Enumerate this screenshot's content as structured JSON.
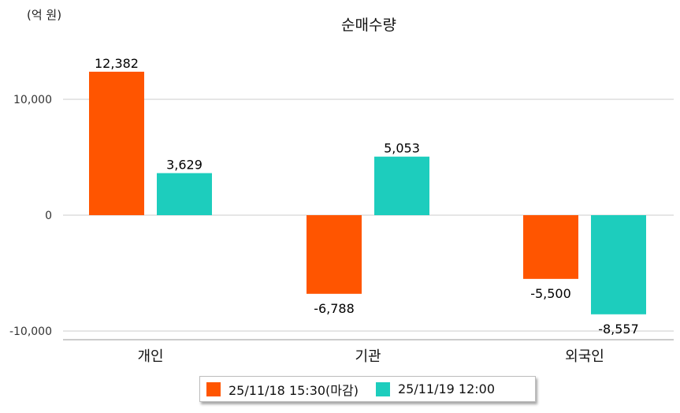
{
  "chart_data": {
    "type": "bar",
    "title": "순매수량",
    "unit_label": "(억 원)",
    "categories": [
      "개인",
      "기관",
      "외국인"
    ],
    "series": [
      {
        "name": "25/11/18 15:30(마감)",
        "color": "#ff5500",
        "values": [
          12382,
          -6788,
          -5500
        ]
      },
      {
        "name": "25/11/19 12:00",
        "color": "#1dcdbd",
        "values": [
          3629,
          5053,
          -8557
        ]
      }
    ],
    "value_labels": [
      [
        "12,382",
        "-6,788",
        "-5,500"
      ],
      [
        "3,629",
        "5,053",
        "-8,557"
      ]
    ],
    "yticks": [
      10000,
      0,
      -10000
    ],
    "ytick_labels": [
      "10,000",
      "0",
      "-10,000"
    ],
    "ylim": [
      -10500,
      14000
    ],
    "grid": true,
    "legend_position": "bottom-center"
  }
}
